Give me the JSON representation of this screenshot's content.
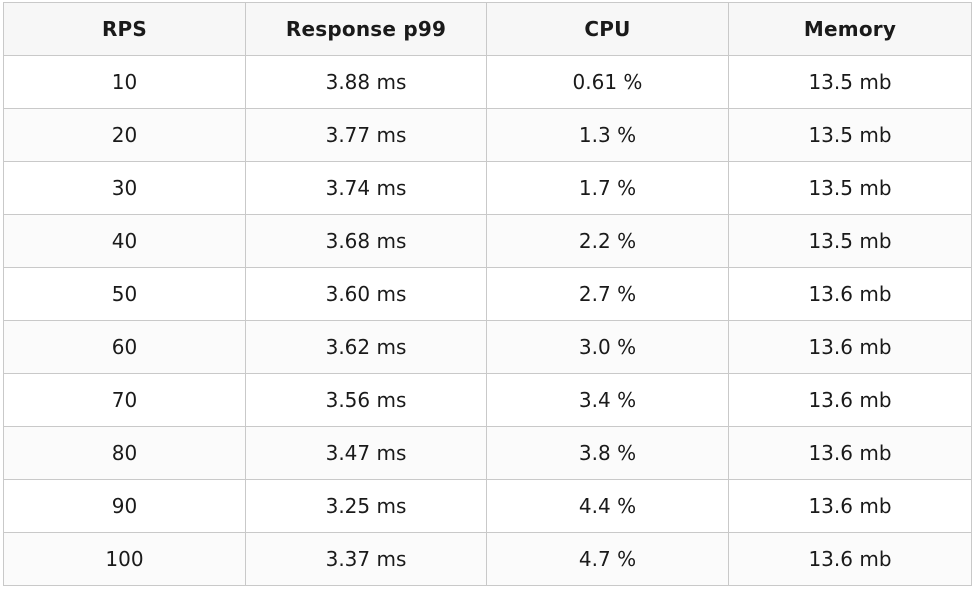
{
  "table": {
    "headers": [
      "RPS",
      "Response p99",
      "CPU",
      "Memory"
    ],
    "rows": [
      [
        "10",
        "3.88 ms",
        "0.61 %",
        "13.5 mb"
      ],
      [
        "20",
        "3.77 ms",
        "1.3 %",
        "13.5 mb"
      ],
      [
        "30",
        "3.74 ms",
        "1.7 %",
        "13.5 mb"
      ],
      [
        "40",
        "3.68 ms",
        "2.2 %",
        "13.5 mb"
      ],
      [
        "50",
        "3.60 ms",
        "2.7 %",
        "13.6 mb"
      ],
      [
        "60",
        "3.62 ms",
        "3.0 %",
        "13.6 mb"
      ],
      [
        "70",
        "3.56 ms",
        "3.4 %",
        "13.6 mb"
      ],
      [
        "80",
        "3.47 ms",
        "3.8 %",
        "13.6 mb"
      ],
      [
        "90",
        "3.25 ms",
        "4.4 %",
        "13.6 mb"
      ],
      [
        "100",
        "3.37 ms",
        "4.7 %",
        "13.6 mb"
      ]
    ]
  }
}
